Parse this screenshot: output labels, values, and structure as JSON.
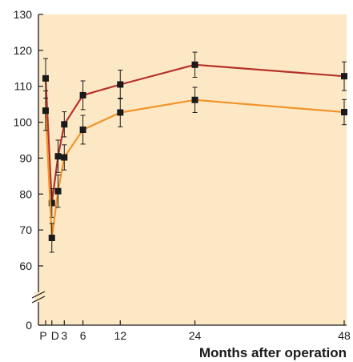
{
  "chart_data": {
    "type": "line",
    "title": "",
    "xlabel": "Months after operation",
    "ylabel": "",
    "x_ticks": [
      {
        "label": "P",
        "x": 0
      },
      {
        "label": "D",
        "x": 1
      },
      {
        "label": "3",
        "x": 3
      },
      {
        "label": "6",
        "x": 6
      },
      {
        "label": "12",
        "x": 12
      },
      {
        "label": "24",
        "x": 24
      },
      {
        "label": "48",
        "x": 48
      }
    ],
    "y_ticks": [
      0,
      60,
      70,
      80,
      90,
      100,
      110,
      120,
      130
    ],
    "ylim": [
      0,
      130
    ],
    "y_axis_break": [
      0,
      60
    ],
    "series": [
      {
        "color": "#b5322a",
        "points": [
          {
            "x": 0,
            "y": 112.2,
            "err": 5.5
          },
          {
            "x": 1,
            "y": 77.5,
            "err": 4.0
          },
          {
            "x": 2,
            "y": 90.5,
            "err": 4.5
          },
          {
            "x": 3,
            "y": 99.4,
            "err": 3.5
          },
          {
            "x": 6,
            "y": 107.5,
            "err": 4.0
          },
          {
            "x": 12,
            "y": 110.5,
            "err": 4.0
          },
          {
            "x": 24,
            "y": 116.0,
            "err": 3.5
          },
          {
            "x": 48,
            "y": 112.8,
            "err": 4.0
          }
        ]
      },
      {
        "color": "#f0952c",
        "points": [
          {
            "x": 0,
            "y": 103.2,
            "err": 5.5
          },
          {
            "x": 1,
            "y": 67.8,
            "err": 4.0
          },
          {
            "x": 2,
            "y": 80.8,
            "err": 4.5
          },
          {
            "x": 3,
            "y": 90.2,
            "err": 3.5
          },
          {
            "x": 6,
            "y": 97.9,
            "err": 4.0
          },
          {
            "x": 12,
            "y": 102.7,
            "err": 4.0
          },
          {
            "x": 24,
            "y": 106.2,
            "err": 3.5
          },
          {
            "x": 48,
            "y": 102.8,
            "err": 3.5
          }
        ]
      }
    ],
    "grid": false,
    "background_color": "#fde8c6",
    "marker_color": "#1a1a1a"
  }
}
